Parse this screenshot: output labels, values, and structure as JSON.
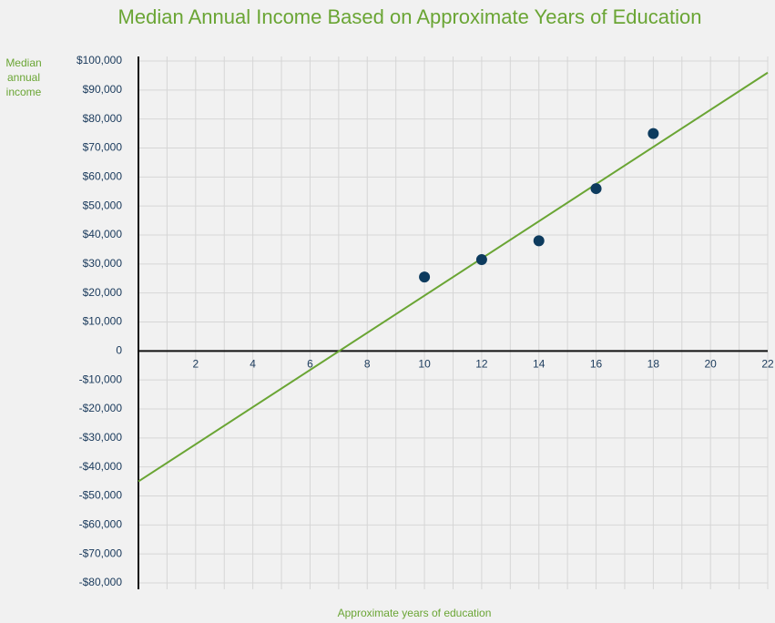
{
  "chart_data": {
    "type": "scatter",
    "title": "Median Annual Income Based on Approximate Years of Education",
    "ylabel": [
      "Median",
      "annual",
      "income"
    ],
    "xlabel": "Approximate years of education",
    "series": [
      {
        "color": "#0d3b5e",
        "x": [
          10,
          12,
          14,
          16,
          18
        ],
        "values": [
          25500,
          31500,
          38000,
          56000,
          75000
        ]
      }
    ],
    "trendline": {
      "color": "#6aa534",
      "x": [
        0,
        22
      ],
      "values": [
        -45000,
        96000
      ]
    },
    "xlim": [
      0,
      22
    ],
    "xticks": [
      2,
      4,
      6,
      8,
      10,
      12,
      14,
      16,
      18,
      20,
      22
    ],
    "xgrid": [
      1,
      2,
      3,
      4,
      5,
      6,
      7,
      8,
      9,
      10,
      11,
      12,
      13,
      14,
      15,
      16,
      17,
      18,
      19,
      20,
      21,
      22
    ],
    "ylim": [
      -80000,
      100000
    ],
    "yticks": [
      {
        "value": 100000,
        "label": "$100,000"
      },
      {
        "value": 90000,
        "label": "$90,000"
      },
      {
        "value": 80000,
        "label": "$80,000"
      },
      {
        "value": 70000,
        "label": "$70,000"
      },
      {
        "value": 60000,
        "label": "$60,000"
      },
      {
        "value": 50000,
        "label": "$50,000"
      },
      {
        "value": 40000,
        "label": "$40,000"
      },
      {
        "value": 30000,
        "label": "$30,000"
      },
      {
        "value": 20000,
        "label": "$20,000"
      },
      {
        "value": 10000,
        "label": "$10,000"
      },
      0,
      {
        "value": -10000,
        "label": "-$10,000"
      },
      {
        "value": -20000,
        "label": "-$20,000"
      },
      {
        "value": -30000,
        "label": "-$30,000"
      },
      {
        "value": -40000,
        "label": "-$40,000"
      },
      {
        "value": -50000,
        "label": "-$50,000"
      },
      {
        "value": -60000,
        "label": "-$60,000"
      },
      {
        "value": -70000,
        "label": "-$70,000"
      },
      {
        "value": -80000,
        "label": "-$80,000"
      }
    ],
    "grid": true
  }
}
